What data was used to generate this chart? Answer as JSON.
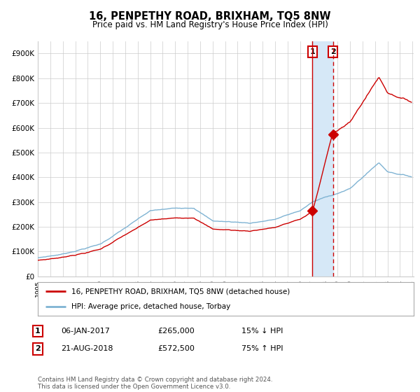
{
  "title": "16, PENPETHY ROAD, BRIXHAM, TQ5 8NW",
  "subtitle": "Price paid vs. HM Land Registry's House Price Index (HPI)",
  "sale1_date_label": "06-JAN-2017",
  "sale1_price": 265000,
  "sale1_pct": "15% ↓ HPI",
  "sale2_date_label": "21-AUG-2018",
  "sale2_price": 572500,
  "sale2_pct": "75% ↑ HPI",
  "legend1": "16, PENPETHY ROAD, BRIXHAM, TQ5 8NW (detached house)",
  "legend2": "HPI: Average price, detached house, Torbay",
  "footnote": "Contains HM Land Registry data © Crown copyright and database right 2024.\nThis data is licensed under the Open Government Licence v3.0.",
  "red_color": "#cc0000",
  "blue_color": "#7fb3d3",
  "shade_color": "#d6e8f7",
  "grid_color": "#cccccc",
  "bg_color": "#ffffff",
  "sale1_year_float": 2017.0,
  "sale2_year_float": 2018.64,
  "ylim_max": 950000,
  "yticks": [
    0,
    100000,
    200000,
    300000,
    400000,
    500000,
    600000,
    700000,
    800000,
    900000
  ],
  "ytick_labels": [
    "£0",
    "£100K",
    "£200K",
    "£300K",
    "£400K",
    "£500K",
    "£600K",
    "£700K",
    "£800K",
    "£900K"
  ]
}
